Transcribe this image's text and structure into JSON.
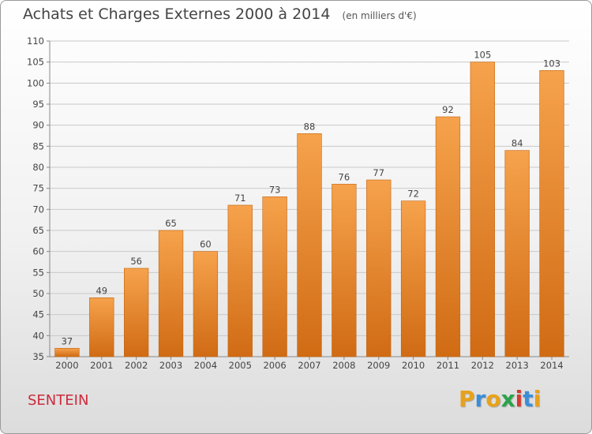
{
  "header": {
    "title": "Achats et Charges Externes 2000 à 2014",
    "subtitle": "(en milliers d'€)"
  },
  "footer": {
    "commune": "SENTEIN",
    "logo": {
      "letters": [
        "P",
        "r",
        "o",
        "x",
        "i",
        "t",
        "i"
      ],
      "colors": [
        "#e8a21a",
        "#3b8ed8",
        "#e8a21a",
        "#2aa34a",
        "#d63a2f",
        "#3b8ed8",
        "#e8a21a"
      ]
    }
  },
  "colors": {
    "bar_light": "#f6a24c",
    "bar_dark": "#d06b14",
    "grid": "#c9c9c9",
    "commune": "#cc2b3c"
  },
  "chart_data": {
    "type": "bar",
    "categories": [
      "2000",
      "2001",
      "2002",
      "2003",
      "2004",
      "2005",
      "2006",
      "2007",
      "2008",
      "2009",
      "2010",
      "2011",
      "2012",
      "2013",
      "2014"
    ],
    "values": [
      37,
      49,
      56,
      65,
      60,
      71,
      73,
      88,
      76,
      77,
      72,
      92,
      105,
      84,
      103
    ],
    "data_labels": [
      "37",
      "49",
      "56",
      "65",
      "60",
      "71",
      "73",
      "88",
      "76",
      "77",
      "72",
      "92",
      "105",
      "84",
      "103"
    ],
    "yticks": [
      "35",
      "40",
      "45",
      "50",
      "55",
      "60",
      "65",
      "70",
      "75",
      "80",
      "85",
      "90",
      "95",
      "100",
      "105",
      "110"
    ],
    "ylim": [
      35,
      110
    ],
    "grid": true
  }
}
